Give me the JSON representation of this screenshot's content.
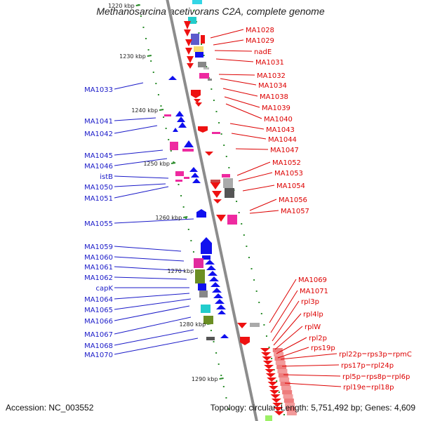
{
  "title": "Methanosarcina acetivorans C2A, complete genome",
  "footer": {
    "accession": "Accession: NC_003552",
    "stats": "Topology: circular; Length: 5,751,492 bp; Genes: 4,609"
  },
  "colors": {
    "left_label": "#1a1ac8",
    "right_label": "#dd0000",
    "backbone": "#8c8c8c",
    "tick": "#2a8c2a"
  },
  "kbp_marks": [
    "1220 kbp",
    "1230 kbp",
    "1240 kbp",
    "1250 kbp",
    "1260 kbp",
    "1270 kbp",
    "1280 kbp",
    "1290 kbp"
  ],
  "left_genes": [
    "MA1033",
    "MA1041",
    "MA1042",
    "MA1045",
    "MA1046",
    "istB",
    "MA1050",
    "MA1051",
    "MA1055",
    "MA1059",
    "MA1060",
    "MA1061",
    "MA1062",
    "capK",
    "MA1064",
    "MA1065",
    "MA1066",
    "MA1067",
    "MA1068",
    "MA1070"
  ],
  "right_genes": [
    "MA1028",
    "MA1029",
    "nadE",
    "MA1031",
    "MA1032",
    "MA1034",
    "MA1038",
    "MA1039",
    "MA1040",
    "MA1043",
    "MA1044",
    "MA1047",
    "MA1052",
    "MA1053",
    "MA1054",
    "MA1056",
    "MA1057",
    "MA1069",
    "MA1071",
    "rpl3p",
    "rpl4lp",
    "rplW",
    "rpl2p",
    "rps19p",
    "rpl22p",
    "rps3p",
    "rpmC",
    "rps17p",
    "rpl24p",
    "rpl5p",
    "rps8p",
    "rpl6p",
    "rpl19e",
    "rpl18p"
  ],
  "right_groups": [
    [
      "rpl22p",
      "rps3p",
      "rpmC"
    ],
    [
      "rps17p",
      "rpl24p"
    ],
    [
      "rpl5p",
      "rps8p",
      "rpl6p"
    ],
    [
      "rpl19e",
      "rpl18p"
    ]
  ]
}
